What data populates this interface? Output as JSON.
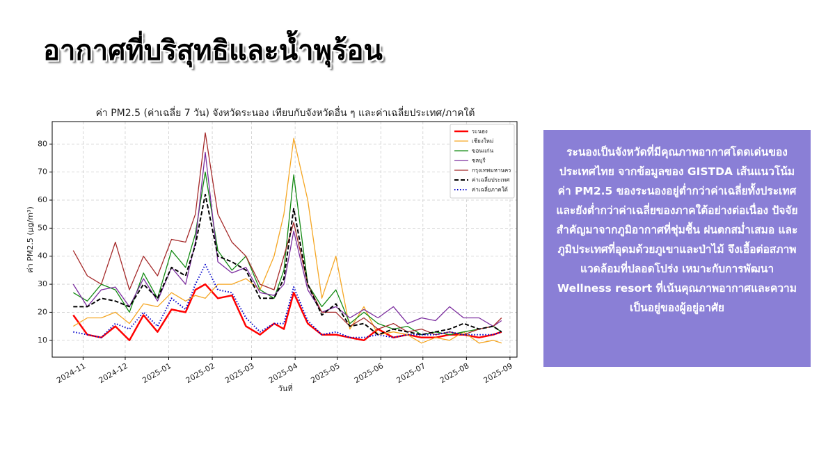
{
  "slide": {
    "title": "อากาศที่บริสุทธิและน้ำพุร้อน",
    "text": "ระนองเป็นจังหวัดที่มีคุณภาพอากาศโดดเด่นของประเทศไทย จากข้อมูลของ GISTDA เส้นแนวโน้มค่า PM2.5 ของระนองอยู่ต่ำกว่าค่าเฉลี่ยทั้งประเทศ และยังต่ำกว่าค่าเฉลี่ยของภาคใต้อย่างต่อเนื่อง ปัจจัยสำคัญมาจากภูมิอากาศที่ชุ่มชื้น ฝนตกสม่ำเสมอ และภูมิประเทศที่อุดมด้วยภูเขาและป่าไม้ จึงเอื้อต่อสภาพแวดล้อมที่ปลอดโปร่ง เหมาะกับการพัฒนา Wellness resort ที่เน้นคุณภาพอากาศและความเป็นอยู่ของผู้อยู่อาศัย"
  },
  "chart_data": {
    "type": "line",
    "title": "ค่า PM2.5 (ค่าเฉลี่ย 7 วัน) จังหวัดระนอง เทียบกับจังหวัดอื่น ๆ และค่าเฉลี่ยประเทศ/ภาคใต้",
    "xlabel": "วันที่",
    "ylabel": "ค่า PM2.5 (µg/m³)",
    "x": [
      "2024-10-25",
      "2024-11-04",
      "2024-11-14",
      "2024-11-24",
      "2024-12-04",
      "2024-12-14",
      "2024-12-24",
      "2025-01-03",
      "2025-01-13",
      "2025-01-20",
      "2025-01-27",
      "2025-02-05",
      "2025-02-15",
      "2025-02-25",
      "2025-03-07",
      "2025-03-17",
      "2025-03-24",
      "2025-03-31",
      "2025-04-10",
      "2025-04-20",
      "2025-04-30",
      "2025-05-10",
      "2025-05-20",
      "2025-05-30",
      "2025-06-10",
      "2025-06-20",
      "2025-06-30",
      "2025-07-10",
      "2025-07-20",
      "2025-07-30",
      "2025-08-10",
      "2025-08-20",
      "2025-08-26"
    ],
    "series": [
      {
        "name": "ระนอง",
        "color": "#ff0000",
        "width": 2.5,
        "dash": "solid",
        "values": [
          19,
          12,
          11,
          15,
          10,
          19,
          13,
          21,
          20,
          28,
          30,
          25,
          26,
          15,
          12,
          16,
          14,
          27,
          16,
          12,
          12,
          11,
          10,
          14,
          11,
          12,
          11,
          11,
          12,
          12,
          11,
          12,
          13
        ]
      },
      {
        "name": "เชียงใหม่",
        "color": "#f5a623",
        "width": 1.3,
        "dash": "solid",
        "values": [
          15,
          18,
          18,
          20,
          16,
          23,
          22,
          27,
          24,
          26,
          25,
          30,
          30,
          32,
          28,
          40,
          55,
          82,
          60,
          25,
          40,
          14,
          22,
          12,
          13,
          12,
          9,
          11,
          10,
          13,
          9,
          10,
          9
        ]
      },
      {
        "name": "ขอนแก่น",
        "color": "#138a13",
        "width": 1.3,
        "dash": "solid",
        "values": [
          27,
          24,
          30,
          28,
          20,
          34,
          25,
          42,
          36,
          48,
          70,
          42,
          35,
          40,
          28,
          25,
          35,
          69,
          30,
          22,
          28,
          16,
          20,
          16,
          14,
          15,
          12,
          13,
          12,
          13,
          14,
          15,
          13
        ]
      },
      {
        "name": "ชลบุรี",
        "color": "#7b2d9e",
        "width": 1.3,
        "dash": "solid",
        "values": [
          30,
          22,
          28,
          29,
          22,
          32,
          24,
          36,
          30,
          45,
          77,
          38,
          34,
          36,
          27,
          26,
          30,
          49,
          28,
          20,
          22,
          18,
          21,
          18,
          22,
          16,
          18,
          17,
          22,
          18,
          18,
          15,
          17
        ]
      },
      {
        "name": "กรุงเทพมหานคร",
        "color": "#a52a2a",
        "width": 1.3,
        "dash": "solid",
        "values": [
          42,
          33,
          30,
          45,
          28,
          40,
          33,
          46,
          45,
          55,
          84,
          55,
          45,
          40,
          30,
          28,
          40,
          52,
          30,
          20,
          20,
          15,
          18,
          14,
          16,
          13,
          14,
          12,
          13,
          12,
          14,
          15,
          18
        ]
      },
      {
        "name": "ค่าเฉลี่ยประเทศ",
        "color": "#000000",
        "width": 2,
        "dash": "dashed",
        "values": [
          22,
          22,
          25,
          24,
          22,
          30,
          25,
          36,
          33,
          44,
          62,
          40,
          38,
          35,
          25,
          25,
          32,
          57,
          30,
          19,
          23,
          15,
          16,
          12,
          14,
          13,
          12,
          13,
          14,
          16,
          14,
          15,
          13
        ]
      },
      {
        "name": "ค่าเฉลี่ยภาคใต้",
        "color": "#0000cc",
        "width": 2,
        "dash": "dotted",
        "values": [
          13,
          12,
          11,
          16,
          14,
          20,
          15,
          25,
          21,
          30,
          37,
          28,
          27,
          18,
          13,
          16,
          16,
          29,
          17,
          12,
          13,
          11,
          11,
          12,
          11,
          12,
          12,
          12,
          13,
          12,
          12,
          12,
          13
        ]
      }
    ],
    "xlim": [
      "2024-10-10",
      "2025-09-06"
    ],
    "xticks": [
      {
        "value": "2024-11-01",
        "label": "2024-11"
      },
      {
        "value": "2024-12-01",
        "label": "2024-12"
      },
      {
        "value": "2025-01-01",
        "label": "2025-01"
      },
      {
        "value": "2025-02-01",
        "label": "2025-02"
      },
      {
        "value": "2025-03-01",
        "label": "2025-03"
      },
      {
        "value": "2025-04-01",
        "label": "2025-04"
      },
      {
        "value": "2025-05-01",
        "label": "2025-05"
      },
      {
        "value": "2025-06-01",
        "label": "2025-06"
      },
      {
        "value": "2025-07-01",
        "label": "2025-07"
      },
      {
        "value": "2025-08-01",
        "label": "2025-08"
      },
      {
        "value": "2025-09-01",
        "label": "2025-09"
      }
    ],
    "ylim": [
      4,
      88
    ],
    "yticks": [
      10,
      20,
      30,
      40,
      50,
      60,
      70,
      80
    ],
    "grid": true,
    "legend": "upper right"
  }
}
